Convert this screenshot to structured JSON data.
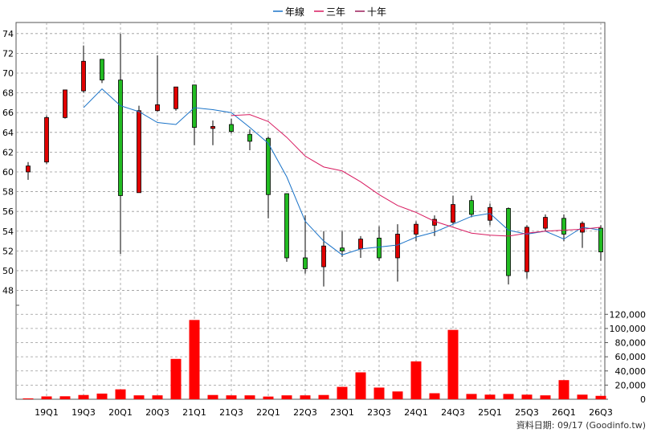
{
  "chart_data": {
    "type": "candlestick+volume",
    "legend": [
      {
        "name": "年線",
        "color": "#1a73c8"
      },
      {
        "name": "三年",
        "color": "#d81b60"
      },
      {
        "name": "十年",
        "color": "#9c1d5a"
      }
    ],
    "x_tick_labels": [
      "19Q1",
      "19Q3",
      "20Q1",
      "20Q3",
      "21Q1",
      "21Q3",
      "22Q1",
      "22Q3",
      "23Q1",
      "23Q3",
      "24Q1",
      "24Q3",
      "25Q1",
      "25Q3",
      "26Q1",
      "26Q3"
    ],
    "price_axis": {
      "ticks": [
        48,
        50,
        52,
        54,
        56,
        58,
        60,
        62,
        64,
        66,
        68,
        70,
        72,
        74
      ],
      "ylim": [
        46.5,
        74.8
      ]
    },
    "volume_axis": {
      "ticks": [
        0,
        20000,
        40000,
        60000,
        80000,
        100000,
        120000
      ],
      "tick_labels": [
        "0",
        "20,000",
        "40,000",
        "60,000",
        "80,000",
        "100,000",
        "120,000"
      ],
      "ylim": [
        0,
        126000
      ]
    },
    "colors": {
      "up": "#e00000",
      "down": "#22bb22",
      "volume": "#ff0000",
      "grid": "#999999"
    },
    "candles": [
      {
        "open": 60.0,
        "close": 60.6,
        "high": 61.0,
        "low": 59.2
      },
      {
        "open": 61.0,
        "close": 65.5,
        "high": 65.7,
        "low": 60.8
      },
      {
        "open": 65.5,
        "close": 68.3,
        "high": 68.3,
        "low": 65.4
      },
      {
        "open": 68.2,
        "close": 71.2,
        "high": 72.8,
        "low": 68.0
      },
      {
        "open": 71.4,
        "close": 69.3,
        "high": 71.4,
        "low": 69.0
      },
      {
        "open": 69.3,
        "close": 57.6,
        "high": 74.0,
        "low": 51.7
      },
      {
        "open": 57.9,
        "close": 66.2,
        "high": 66.7,
        "low": 57.9
      },
      {
        "open": 66.2,
        "close": 66.8,
        "high": 71.8,
        "low": 66.1
      },
      {
        "open": 66.4,
        "close": 68.6,
        "high": 68.6,
        "low": 66.2
      },
      {
        "open": 68.8,
        "close": 64.5,
        "high": 68.8,
        "low": 62.7
      },
      {
        "open": 64.4,
        "close": 64.6,
        "high": 65.2,
        "low": 62.7
      },
      {
        "open": 64.8,
        "close": 64.1,
        "high": 65.4,
        "low": 63.9
      },
      {
        "open": 63.8,
        "close": 63.1,
        "high": 64.3,
        "low": 62.2
      },
      {
        "open": 63.4,
        "close": 57.7,
        "high": 63.6,
        "low": 55.3
      },
      {
        "open": 57.8,
        "close": 51.3,
        "high": 57.8,
        "low": 50.9
      },
      {
        "open": 51.3,
        "close": 50.2,
        "high": 55.6,
        "low": 49.7
      },
      {
        "open": 50.4,
        "close": 52.5,
        "high": 54.0,
        "low": 48.4
      },
      {
        "open": 52.3,
        "close": 52.0,
        "high": 54.0,
        "low": 51.4
      },
      {
        "open": 52.2,
        "close": 53.2,
        "high": 53.5,
        "low": 51.3
      },
      {
        "open": 53.3,
        "close": 51.3,
        "high": 54.5,
        "low": 51.0
      },
      {
        "open": 51.3,
        "close": 53.7,
        "high": 54.7,
        "low": 48.9
      },
      {
        "open": 53.7,
        "close": 54.7,
        "high": 55.0,
        "low": 53.0
      },
      {
        "open": 54.6,
        "close": 55.2,
        "high": 55.6,
        "low": 53.5
      },
      {
        "open": 54.9,
        "close": 56.7,
        "high": 57.6,
        "low": 54.7
      },
      {
        "open": 57.1,
        "close": 55.7,
        "high": 57.6,
        "low": 55.4
      },
      {
        "open": 55.1,
        "close": 56.4,
        "high": 56.8,
        "low": 54.6
      },
      {
        "open": 56.3,
        "close": 49.5,
        "high": 56.4,
        "low": 48.6
      },
      {
        "open": 49.9,
        "close": 54.4,
        "high": 54.6,
        "low": 49.2
      },
      {
        "open": 54.3,
        "close": 55.4,
        "high": 55.7,
        "low": 54.0
      },
      {
        "open": 55.3,
        "close": 53.7,
        "high": 55.7,
        "low": 53.0
      },
      {
        "open": 53.9,
        "close": 54.8,
        "high": 55.0,
        "low": 52.3
      },
      {
        "open": 54.3,
        "close": 51.9,
        "high": 54.6,
        "low": 51.0
      }
    ],
    "series": [
      {
        "name": "年線",
        "start_index": 3,
        "values": [
          66.5,
          68.4,
          66.7,
          66.1,
          65.0,
          64.8,
          66.5,
          66.3,
          66.0,
          64.5,
          62.9,
          59.5,
          55.0,
          53.0,
          51.6,
          52.2,
          52.4,
          52.6,
          53.4,
          53.9,
          54.7,
          55.5,
          55.8,
          54.1,
          53.7,
          54.0,
          53.2,
          54.4,
          54.1
        ]
      },
      {
        "name": "三年",
        "start_index": 11,
        "values": [
          65.7,
          65.8,
          65.1,
          63.5,
          61.6,
          60.5,
          60.1,
          59.0,
          57.7,
          56.6,
          55.9,
          55.0,
          54.4,
          53.8,
          53.6,
          53.5,
          53.8,
          54.0,
          54.1,
          54.2,
          54.4
        ]
      }
    ],
    "volume": [
      1200,
      4000,
      4200,
      6000,
      8000,
      14000,
      5500,
      5500,
      57000,
      112000,
      6000,
      5500,
      5500,
      3800,
      5500,
      5500,
      6000,
      17500,
      38000,
      16500,
      11000,
      53500,
      8500,
      98000,
      7500,
      6500,
      7500,
      6500,
      5500,
      27000,
      6500,
      4800
    ],
    "footer_text": "資料日期: 09/17  (Goodinfo.tw)"
  }
}
